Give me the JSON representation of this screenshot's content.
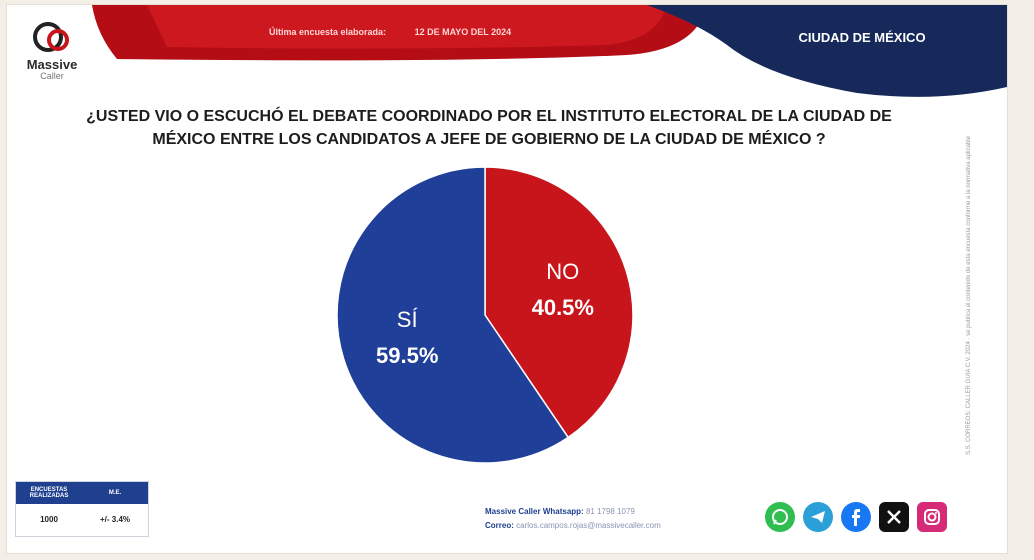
{
  "brand": {
    "name": "Massive",
    "sub": "Caller"
  },
  "header": {
    "survey_label": "Última encuesta elaborada:",
    "survey_date": "12 DE MAYO DEL 2024",
    "region": "CIUDAD DE MÉXICO"
  },
  "question": {
    "line1": "¿USTED VIO O ESCUCHÓ EL DEBATE COORDINADO POR EL INSTITUTO ELECTORAL DE LA CIUDAD DE",
    "line2": "MÉXICO  ENTRE LOS CANDIDATOS A  JEFE DE GOBIERNO DE LA CIUDAD DE MÉXICO ?"
  },
  "chart_data": {
    "type": "pie",
    "slices": [
      {
        "label": "NO",
        "value": 40.5,
        "display": "40.5%",
        "color": "#c8141b"
      },
      {
        "label": "SÍ",
        "value": 59.5,
        "display": "59.5%",
        "color": "#1f3f99"
      }
    ],
    "start": "12 o'clock",
    "direction": "clockwise"
  },
  "side_note": "S.S. CORREOS: CALLER GUIA C.V. 2024 · se publica el contenido de esta encuesta conforme a la normativa aplicable",
  "stats": {
    "col1": "ENCUESTAS REALIZADAS",
    "col2": "M.E.",
    "val1": "1000",
    "val2": "+/- 3.4%"
  },
  "contact": {
    "whatsapp_label": "Massive Caller Whatsapp:",
    "whatsapp_value": "81 1798 1079",
    "email_label": "Correo:",
    "email_value": "carlos.campos.rojas@massivecaller.com"
  },
  "social": [
    "whatsapp-icon",
    "telegram-icon",
    "facebook-icon",
    "x-icon",
    "instagram-icon"
  ],
  "colors": {
    "red": "#c8141b",
    "blue": "#1f3f99",
    "navy": "#16295a"
  }
}
